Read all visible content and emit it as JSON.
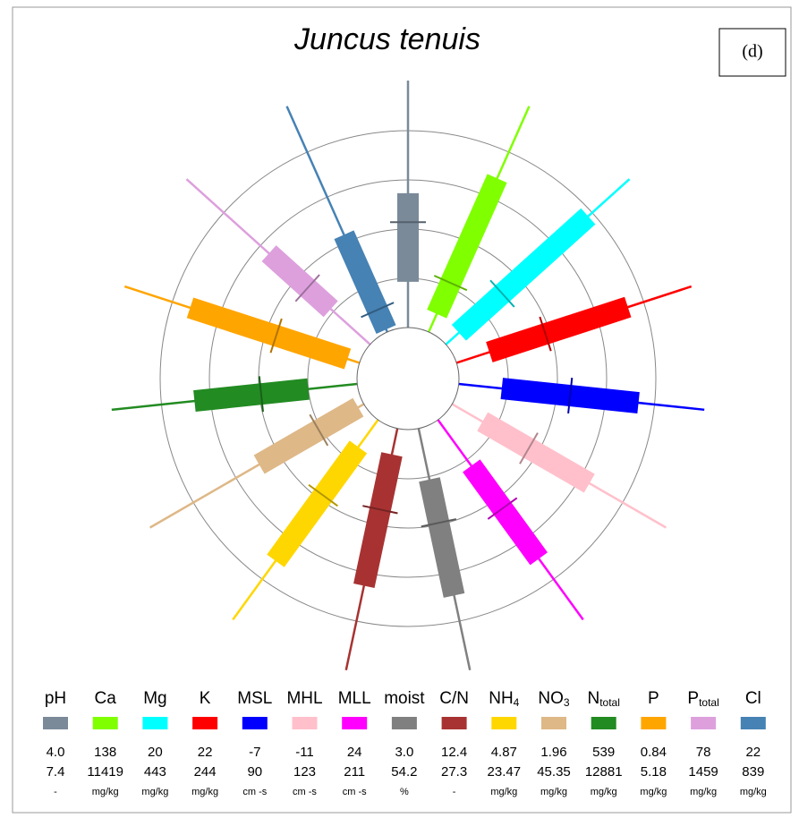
{
  "chart_data": {
    "type": "radial_box",
    "title": "Juncus tenuis",
    "panel_label": "(d)",
    "variables": [
      {
        "name": "pH",
        "color": "#7a8a99",
        "min": 4.0,
        "max": 7.4,
        "min_label": "4.0",
        "max_label": "7.4",
        "unit": "-",
        "box": [
          4.63,
          5.45,
          5.85
        ]
      },
      {
        "name": "Ca",
        "color": "#80ff00",
        "min": 138,
        "max": 11419,
        "min_label": "138",
        "max_label": "11419",
        "unit": "mg/kg",
        "box": [
          1040,
          2590,
          7820
        ]
      },
      {
        "name": "Mg",
        "color": "#00ffff",
        "min": 20,
        "max": 443,
        "min_label": "20",
        "max_label": "443",
        "unit": "mg/kg",
        "box": [
          50,
          150,
          348
        ]
      },
      {
        "name": "K",
        "color": "#ff0000",
        "min": 22,
        "max": 244,
        "min_label": "22",
        "max_label": "244",
        "unit": "mg/kg",
        "box": [
          53,
          106,
          184
        ]
      },
      {
        "name": "MSL",
        "color": "#0000ff",
        "min": -7,
        "max": 90,
        "min_label": "-7",
        "max_label": "90",
        "unit": "cm -s",
        "box": [
          10,
          37,
          64
        ]
      },
      {
        "name": "MHL",
        "color": "#ffc0cb",
        "min": -11,
        "max": 123,
        "min_label": "-11",
        "max_label": "123",
        "unit": "cm -s",
        "box": [
          8,
          37,
          75
        ]
      },
      {
        "name": "MLL",
        "color": "#ff00ff",
        "min": 24,
        "max": 211,
        "min_label": "24",
        "max_label": "211",
        "unit": "cm -s",
        "box": [
          67,
          107,
          154
        ]
      },
      {
        "name": "moist",
        "color": "#808080",
        "min": 3.0,
        "max": 54.2,
        "min_label": "3.0",
        "max_label": "54.2",
        "unit": "%",
        "box": [
          13.8,
          23.0,
          38.4
        ]
      },
      {
        "name": "C/N",
        "color": "#a83232",
        "min": 12.4,
        "max": 27.3,
        "min_label": "12.4",
        "max_label": "27.3",
        "unit": "-",
        "box": [
          14.0,
          17.4,
          22.1
        ]
      },
      {
        "name": "NH",
        "sub": "4",
        "color": "#ffd700",
        "min": 4.87,
        "max": 23.47,
        "min_label": "4.87",
        "max_label": "23.47",
        "unit": "mg/kg",
        "box": [
          7.4,
          11.9,
          18.0
        ]
      },
      {
        "name": "NO",
        "sub": "3",
        "color": "#deb887",
        "min": 1.96,
        "max": 45.35,
        "min_label": "1.96",
        "max_label": "45.35",
        "unit": "mg/kg",
        "box": [
          3.1,
          11.1,
          23.2
        ]
      },
      {
        "name": "N",
        "sub": "total",
        "color": "#228b22",
        "min": 539,
        "max": 12881,
        "min_label": "539",
        "max_label": "12881",
        "unit": "mg/kg",
        "box": [
          3000,
          5370,
          8720
        ]
      },
      {
        "name": "P",
        "color": "#ffa500",
        "min": 0.84,
        "max": 5.18,
        "min_label": "0.84",
        "max_label": "5.18",
        "unit": "mg/kg",
        "box": [
          1.06,
          2.38,
          3.97
        ]
      },
      {
        "name": "P",
        "sub": "total",
        "color": "#dda0dd",
        "min": 78,
        "max": 1459,
        "min_label": "78",
        "max_label": "1459",
        "unit": "mg/kg",
        "box": [
          374,
          549,
          839
        ]
      },
      {
        "name": "Cl",
        "color": "#4682b4",
        "min": 22,
        "max": 839,
        "min_label": "22",
        "max_label": "839",
        "unit": "mg/kg",
        "box": [
          31,
          102,
          374
        ]
      }
    ]
  }
}
